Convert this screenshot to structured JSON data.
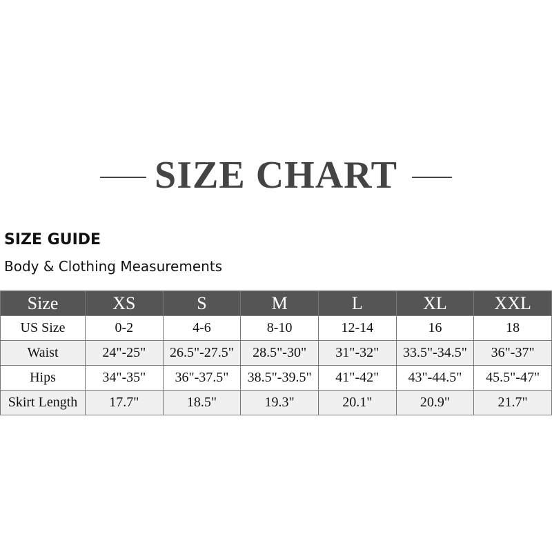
{
  "title": "SIZE CHART",
  "guide_title": "SIZE GUIDE",
  "guide_subtitle": "Body & Clothing Measurements",
  "table": {
    "headers": [
      "Size",
      "XS",
      "S",
      "M",
      "L",
      "XL",
      "XXL"
    ],
    "rows": [
      [
        "US Size",
        "0-2",
        "4-6",
        "8-10",
        "12-14",
        "16",
        "18"
      ],
      [
        "Waist",
        "24\"-25\"",
        "26.5\"-27.5\"",
        "28.5\"-30\"",
        "31\"-32\"",
        "33.5\"-34.5\"",
        "36\"-37\""
      ],
      [
        "Hips",
        "34\"-35\"",
        "36\"-37.5\"",
        "38.5\"-39.5\"",
        "41\"-42\"",
        "43\"-44.5\"",
        "45.5\"-47\""
      ],
      [
        "Skirt Length",
        "17.7\"",
        "18.5\"",
        "19.3\"",
        "20.1\"",
        "20.9\"",
        "21.7\""
      ]
    ]
  },
  "colors": {
    "header_bg": "#555555",
    "alt_row": "#f0f0f0",
    "title": "#444444"
  }
}
